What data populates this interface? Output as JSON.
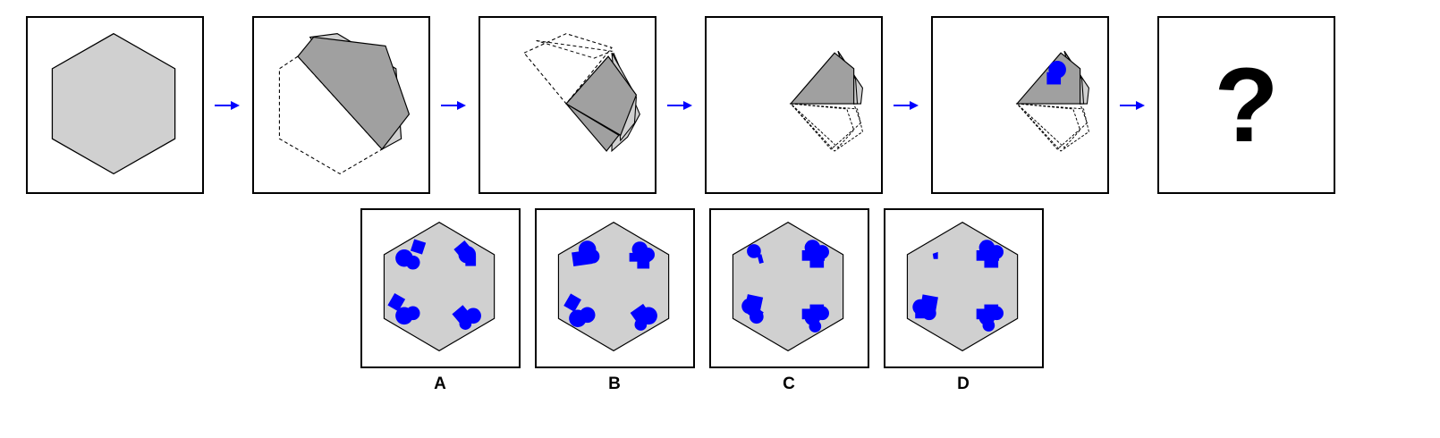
{
  "question_mark": "?",
  "options": [
    {
      "label": "A"
    },
    {
      "label": "B"
    },
    {
      "label": "C"
    },
    {
      "label": "D"
    }
  ],
  "colors": {
    "light_fill": "#d0d0d0",
    "dark_fill": "#a0a0a0",
    "stroke": "#000000",
    "arrow": "#0000ff",
    "punch": "#0000ff"
  },
  "icons": {
    "arrow": "right-arrow-icon",
    "punch": "punched-hole-icon"
  }
}
